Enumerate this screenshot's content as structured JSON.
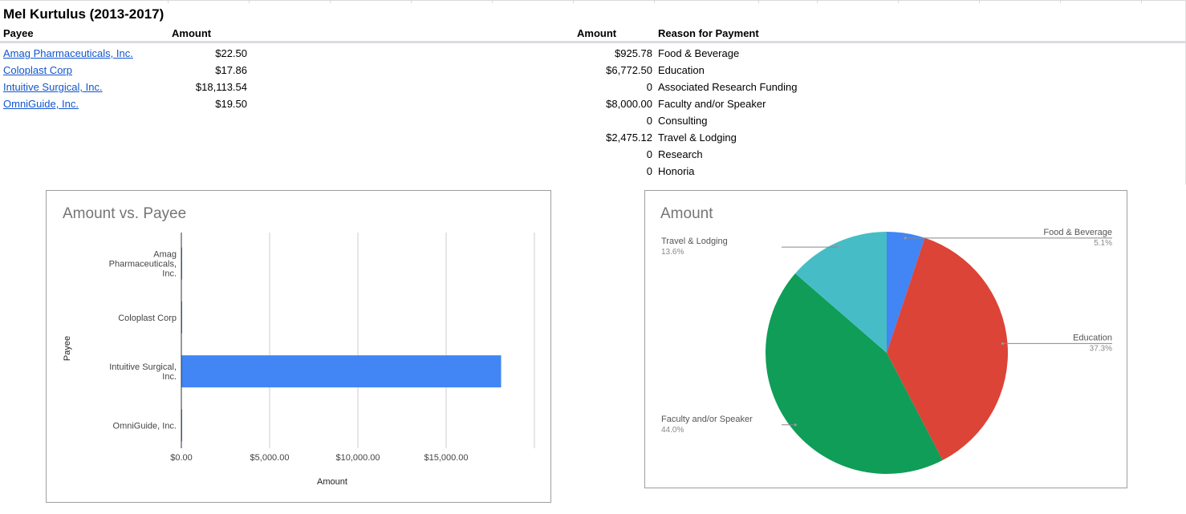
{
  "sheet": {
    "title": "Mel Kurtulus (2013-2017)",
    "headers": {
      "payee": "Payee",
      "amount": "Amount",
      "amount2": "Amount",
      "reason": "Reason for Payment"
    },
    "payees": [
      {
        "name": "Amag Pharmaceuticals, Inc.",
        "amount": "$22.50"
      },
      {
        "name": "Coloplast Corp",
        "amount": "$17.86"
      },
      {
        "name": "Intuitive Surgical, Inc.",
        "amount": "$18,113.54"
      },
      {
        "name": "OmniGuide, Inc.",
        "amount": "$19.50"
      }
    ],
    "reasons": [
      {
        "amount": "$925.78",
        "reason": "Food & Beverage"
      },
      {
        "amount": "$6,772.50",
        "reason": "Education"
      },
      {
        "amount": "0",
        "reason": "Associated Research Funding"
      },
      {
        "amount": "$8,000.00",
        "reason": "Faculty and/or Speaker"
      },
      {
        "amount": "0",
        "reason": "Consulting"
      },
      {
        "amount": "$2,475.12",
        "reason": "Travel & Lodging"
      },
      {
        "amount": "0",
        "reason": "Research"
      },
      {
        "amount": "0",
        "reason": "Honoria"
      }
    ]
  },
  "chart_data": [
    {
      "type": "bar",
      "orientation": "horizontal",
      "title": "Amount vs. Payee",
      "xlabel": "Amount",
      "ylabel": "Payee",
      "categories": [
        "Amag Pharmaceuticals, Inc.",
        "Coloplast Corp",
        "Intuitive Surgical, Inc.",
        "OmniGuide, Inc."
      ],
      "category_lines": [
        [
          "Amag",
          "Pharmaceuticals,",
          "Inc."
        ],
        [
          "Coloplast Corp"
        ],
        [
          "Intuitive Surgical,",
          "Inc."
        ],
        [
          "OmniGuide, Inc."
        ]
      ],
      "values": [
        22.5,
        17.86,
        18113.54,
        19.5
      ],
      "xticks": [
        0,
        5000,
        10000,
        15000
      ],
      "xtick_labels": [
        "$0.00",
        "$5,000.00",
        "$10,000.00",
        "$15,000.00"
      ],
      "xlim": [
        0,
        20000
      ],
      "grid": true,
      "color": "#4285f4"
    },
    {
      "type": "pie",
      "title": "Amount",
      "slices": [
        {
          "label": "Food & Beverage",
          "value": 925.78,
          "pct": "5.1%",
          "color": "#4285f4",
          "label_side": "right"
        },
        {
          "label": "Education",
          "value": 6772.5,
          "pct": "37.3%",
          "color": "#db4437",
          "label_side": "right"
        },
        {
          "label": "Faculty and/or Speaker",
          "value": 8000.0,
          "pct": "44.0%",
          "color": "#0f9d58",
          "label_side": "left"
        },
        {
          "label": "Travel & Lodging",
          "value": 2475.12,
          "pct": "13.6%",
          "color": "#46bdc6",
          "label_side": "left"
        }
      ]
    }
  ]
}
